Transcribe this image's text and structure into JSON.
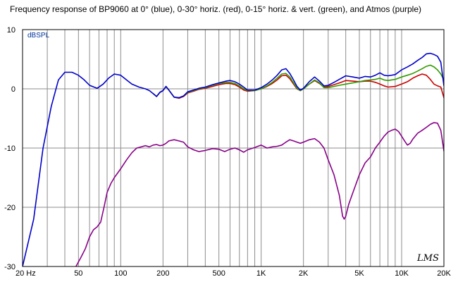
{
  "chart_data": {
    "type": "line",
    "title": "Frequency response of BP9060 at 0° (blue), 0-30° horiz. (red), 0-15° horiz. & vert. (green), and Atmos (purple)",
    "ylabel": "dBSPL",
    "xscale": "log",
    "xlim": [
      20,
      20000
    ],
    "ylim": [
      -30,
      10
    ],
    "grid": true,
    "x_tick_labels": [
      {
        "value": 20,
        "label": "20 Hz"
      },
      {
        "value": 50,
        "label": "50"
      },
      {
        "value": 100,
        "label": "100"
      },
      {
        "value": 200,
        "label": "200"
      },
      {
        "value": 500,
        "label": "500"
      },
      {
        "value": 1000,
        "label": "1K"
      },
      {
        "value": 2000,
        "label": "2K"
      },
      {
        "value": 5000,
        "label": "5K"
      },
      {
        "value": 10000,
        "label": "10K"
      },
      {
        "value": 20000,
        "label": "20K"
      }
    ],
    "y_ticks": [
      10,
      0,
      -10,
      -20,
      -30
    ],
    "signature": "LMS",
    "series": [
      {
        "color": "#0000cc",
        "points": [
          [
            20,
            -30
          ],
          [
            24,
            -22
          ],
          [
            28,
            -10
          ],
          [
            32,
            -3
          ],
          [
            36,
            1.5
          ],
          [
            40,
            2.8
          ],
          [
            45,
            2.8
          ],
          [
            50,
            2.3
          ],
          [
            55,
            1.5
          ],
          [
            60,
            0.6
          ],
          [
            68,
            0.1
          ],
          [
            75,
            0.8
          ],
          [
            82,
            1.8
          ],
          [
            90,
            2.5
          ],
          [
            100,
            2.3
          ],
          [
            110,
            1.5
          ],
          [
            120,
            0.8
          ],
          [
            135,
            0.3
          ],
          [
            150,
            0
          ],
          [
            160,
            -0.3
          ],
          [
            170,
            -0.8
          ],
          [
            180,
            -1.3
          ],
          [
            190,
            -0.6
          ],
          [
            200,
            -0.3
          ],
          [
            210,
            0.4
          ],
          [
            220,
            -0.2
          ],
          [
            240,
            -1.4
          ],
          [
            260,
            -1.5
          ],
          [
            280,
            -1.2
          ],
          [
            300,
            -0.5
          ],
          [
            330,
            -0.2
          ],
          [
            360,
            0.1
          ],
          [
            400,
            0.3
          ],
          [
            450,
            0.7
          ],
          [
            500,
            1.0
          ],
          [
            560,
            1.3
          ],
          [
            600,
            1.4
          ],
          [
            650,
            1.2
          ],
          [
            700,
            0.8
          ],
          [
            750,
            0.3
          ],
          [
            800,
            -0.2
          ],
          [
            900,
            -0.2
          ],
          [
            1000,
            0.2
          ],
          [
            1100,
            0.8
          ],
          [
            1200,
            1.5
          ],
          [
            1300,
            2.3
          ],
          [
            1400,
            3.2
          ],
          [
            1500,
            3.4
          ],
          [
            1600,
            2.6
          ],
          [
            1700,
            1.5
          ],
          [
            1800,
            0.4
          ],
          [
            1900,
            -0.2
          ],
          [
            2000,
            0.1
          ],
          [
            2200,
            1.2
          ],
          [
            2400,
            2.0
          ],
          [
            2600,
            1.3
          ],
          [
            2800,
            0.5
          ],
          [
            3000,
            0.6
          ],
          [
            3300,
            1.1
          ],
          [
            3600,
            1.6
          ],
          [
            4000,
            2.2
          ],
          [
            4500,
            2.0
          ],
          [
            5000,
            1.8
          ],
          [
            5500,
            2.1
          ],
          [
            6000,
            2.0
          ],
          [
            6500,
            2.3
          ],
          [
            7000,
            2.7
          ],
          [
            7500,
            2.3
          ],
          [
            8000,
            2.2
          ],
          [
            9000,
            2.4
          ],
          [
            10000,
            3.2
          ],
          [
            11000,
            3.7
          ],
          [
            12000,
            4.2
          ],
          [
            13000,
            4.8
          ],
          [
            14000,
            5.3
          ],
          [
            15000,
            5.9
          ],
          [
            16000,
            6.0
          ],
          [
            17000,
            5.8
          ],
          [
            18000,
            5.5
          ],
          [
            19000,
            4.5
          ],
          [
            20000,
            0.5
          ]
        ]
      },
      {
        "color": "#cc0000",
        "points": [
          [
            170,
            -0.8
          ],
          [
            180,
            -1.3
          ],
          [
            190,
            -0.6
          ],
          [
            200,
            -0.3
          ],
          [
            210,
            0.4
          ],
          [
            220,
            -0.2
          ],
          [
            240,
            -1.4
          ],
          [
            260,
            -1.6
          ],
          [
            280,
            -1.3
          ],
          [
            300,
            -0.7
          ],
          [
            330,
            -0.4
          ],
          [
            360,
            -0.1
          ],
          [
            400,
            0.1
          ],
          [
            450,
            0.4
          ],
          [
            500,
            0.7
          ],
          [
            560,
            0.9
          ],
          [
            600,
            0.9
          ],
          [
            650,
            0.7
          ],
          [
            700,
            0.3
          ],
          [
            750,
            -0.2
          ],
          [
            800,
            -0.4
          ],
          [
            900,
            -0.3
          ],
          [
            1000,
            0
          ],
          [
            1100,
            0.4
          ],
          [
            1200,
            0.9
          ],
          [
            1300,
            1.5
          ],
          [
            1400,
            2.2
          ],
          [
            1500,
            2.3
          ],
          [
            1600,
            1.7
          ],
          [
            1700,
            0.8
          ],
          [
            1800,
            0
          ],
          [
            1900,
            -0.3
          ],
          [
            2000,
            0
          ],
          [
            2200,
            0.8
          ],
          [
            2400,
            1.4
          ],
          [
            2600,
            0.9
          ],
          [
            2800,
            0.3
          ],
          [
            3000,
            0.4
          ],
          [
            3300,
            0.7
          ],
          [
            3600,
            1.0
          ],
          [
            4000,
            1.4
          ],
          [
            4500,
            1.3
          ],
          [
            5000,
            1.2
          ],
          [
            5500,
            1.3
          ],
          [
            6000,
            1.3
          ],
          [
            6500,
            1.1
          ],
          [
            7000,
            0.8
          ],
          [
            7500,
            0.5
          ],
          [
            8000,
            0.3
          ],
          [
            9000,
            0.4
          ],
          [
            10000,
            0.8
          ],
          [
            11000,
            1.2
          ],
          [
            12000,
            1.8
          ],
          [
            13000,
            2.2
          ],
          [
            14000,
            2.5
          ],
          [
            15000,
            2.3
          ],
          [
            16000,
            1.6
          ],
          [
            17000,
            0.8
          ],
          [
            18000,
            0.5
          ],
          [
            19000,
            0.3
          ],
          [
            20000,
            -1.5
          ]
        ]
      },
      {
        "color": "#339900",
        "points": [
          [
            170,
            -0.8
          ],
          [
            180,
            -1.3
          ],
          [
            190,
            -0.6
          ],
          [
            200,
            -0.3
          ],
          [
            210,
            0.4
          ],
          [
            220,
            -0.2
          ],
          [
            240,
            -1.4
          ],
          [
            260,
            -1.5
          ],
          [
            280,
            -1.2
          ],
          [
            300,
            -0.6
          ],
          [
            330,
            -0.3
          ],
          [
            360,
            0
          ],
          [
            400,
            0.2
          ],
          [
            450,
            0.6
          ],
          [
            500,
            0.9
          ],
          [
            560,
            1.1
          ],
          [
            600,
            1.1
          ],
          [
            650,
            0.9
          ],
          [
            700,
            0.5
          ],
          [
            750,
            0
          ],
          [
            800,
            -0.3
          ],
          [
            900,
            -0.3
          ],
          [
            1000,
            0
          ],
          [
            1100,
            0.5
          ],
          [
            1200,
            1.1
          ],
          [
            1300,
            1.8
          ],
          [
            1400,
            2.5
          ],
          [
            1500,
            2.6
          ],
          [
            1600,
            2.0
          ],
          [
            1700,
            1.0
          ],
          [
            1800,
            0.1
          ],
          [
            1900,
            -0.3
          ],
          [
            2000,
            0
          ],
          [
            2200,
            0.8
          ],
          [
            2400,
            1.5
          ],
          [
            2600,
            1.0
          ],
          [
            2800,
            0.2
          ],
          [
            3000,
            0.2
          ],
          [
            3300,
            0.4
          ],
          [
            3600,
            0.6
          ],
          [
            4000,
            0.8
          ],
          [
            4500,
            1.0
          ],
          [
            5000,
            1.2
          ],
          [
            5500,
            1.4
          ],
          [
            6000,
            1.5
          ],
          [
            6500,
            1.6
          ],
          [
            7000,
            1.8
          ],
          [
            7500,
            1.5
          ],
          [
            8000,
            1.4
          ],
          [
            9000,
            1.6
          ],
          [
            10000,
            2.0
          ],
          [
            11000,
            2.3
          ],
          [
            12000,
            2.6
          ],
          [
            13000,
            3.0
          ],
          [
            14000,
            3.4
          ],
          [
            15000,
            3.8
          ],
          [
            16000,
            4.0
          ],
          [
            17000,
            3.7
          ],
          [
            18000,
            3.2
          ],
          [
            19000,
            2.5
          ],
          [
            20000,
            1.5
          ]
        ]
      },
      {
        "color": "#880088",
        "points": [
          [
            48,
            -30
          ],
          [
            52,
            -28.5
          ],
          [
            56,
            -27
          ],
          [
            60,
            -25
          ],
          [
            64,
            -23.8
          ],
          [
            68,
            -23.3
          ],
          [
            72,
            -22.5
          ],
          [
            76,
            -20
          ],
          [
            80,
            -17.5
          ],
          [
            85,
            -16
          ],
          [
            90,
            -15
          ],
          [
            100,
            -13.5
          ],
          [
            110,
            -12
          ],
          [
            120,
            -10.8
          ],
          [
            130,
            -10
          ],
          [
            140,
            -9.8
          ],
          [
            150,
            -9.6
          ],
          [
            160,
            -9.8
          ],
          [
            170,
            -9.5
          ],
          [
            180,
            -9.4
          ],
          [
            190,
            -9.6
          ],
          [
            200,
            -9.5
          ],
          [
            210,
            -9.2
          ],
          [
            220,
            -8.8
          ],
          [
            240,
            -8.6
          ],
          [
            260,
            -8.8
          ],
          [
            280,
            -9.0
          ],
          [
            300,
            -9.8
          ],
          [
            330,
            -10.3
          ],
          [
            360,
            -10.6
          ],
          [
            400,
            -10.4
          ],
          [
            450,
            -10.1
          ],
          [
            500,
            -10.2
          ],
          [
            550,
            -10.6
          ],
          [
            600,
            -10.2
          ],
          [
            650,
            -10.0
          ],
          [
            700,
            -10.3
          ],
          [
            750,
            -10.7
          ],
          [
            800,
            -10.3
          ],
          [
            900,
            -9.9
          ],
          [
            1000,
            -9.5
          ],
          [
            1100,
            -10.0
          ],
          [
            1200,
            -9.8
          ],
          [
            1300,
            -9.7
          ],
          [
            1400,
            -9.5
          ],
          [
            1500,
            -9.0
          ],
          [
            1600,
            -8.6
          ],
          [
            1700,
            -8.8
          ],
          [
            1800,
            -9.0
          ],
          [
            1900,
            -9.2
          ],
          [
            2000,
            -9.0
          ],
          [
            2200,
            -8.6
          ],
          [
            2400,
            -8.4
          ],
          [
            2600,
            -9.0
          ],
          [
            2800,
            -10.0
          ],
          [
            3000,
            -12.0
          ],
          [
            3300,
            -14.5
          ],
          [
            3600,
            -18.0
          ],
          [
            3800,
            -21.5
          ],
          [
            3900,
            -22.0
          ],
          [
            4000,
            -21.5
          ],
          [
            4200,
            -19.5
          ],
          [
            4500,
            -17.5
          ],
          [
            5000,
            -14.5
          ],
          [
            5500,
            -12.5
          ],
          [
            6000,
            -11.5
          ],
          [
            6500,
            -10.0
          ],
          [
            7000,
            -9.0
          ],
          [
            7500,
            -8.0
          ],
          [
            8000,
            -7.3
          ],
          [
            8500,
            -7.0
          ],
          [
            9000,
            -6.8
          ],
          [
            9500,
            -7.2
          ],
          [
            10000,
            -8.0
          ],
          [
            10500,
            -8.8
          ],
          [
            11000,
            -9.5
          ],
          [
            11500,
            -9.2
          ],
          [
            12000,
            -8.5
          ],
          [
            13000,
            -7.5
          ],
          [
            14000,
            -7.0
          ],
          [
            15000,
            -6.5
          ],
          [
            16000,
            -6.0
          ],
          [
            17000,
            -5.7
          ],
          [
            18000,
            -5.8
          ],
          [
            19000,
            -7.0
          ],
          [
            20000,
            -10.5
          ]
        ]
      }
    ]
  }
}
